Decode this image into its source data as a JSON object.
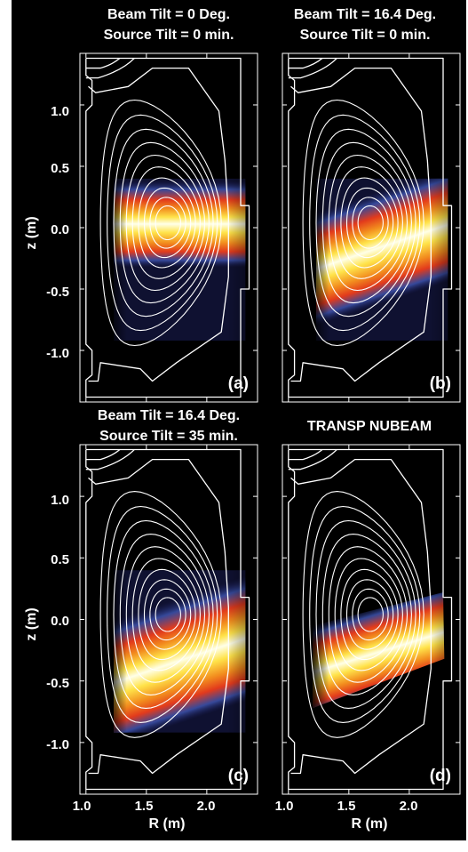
{
  "panels": [
    {
      "id": "a",
      "label": "(a)",
      "title_lines": [
        "Beam Tilt = 0 Deg.",
        "Source Tilt = 0 min."
      ],
      "beam_slope": 0.0,
      "beam_z0": 0.03,
      "beam_halfwidth": 0.16,
      "image_region": "measured"
    },
    {
      "id": "b",
      "label": "(b)",
      "title_lines": [
        "Beam Tilt = 16.4 Deg.",
        "Source Tilt = 0 min."
      ],
      "beam_slope": 0.33,
      "beam_z0": -0.18,
      "beam_halfwidth": 0.2,
      "image_region": "measured"
    },
    {
      "id": "c",
      "label": "(c)",
      "title_lines": [
        "Beam Tilt = 16.4 Deg.",
        "Source Tilt = 35 min."
      ],
      "beam_slope": 0.33,
      "beam_z0": -0.36,
      "beam_halfwidth": 0.22,
      "image_region": "measured"
    },
    {
      "id": "d",
      "label": "(d)",
      "title_lines": [
        "TRANSP NUBEAM"
      ],
      "beam_slope": 0.3,
      "beam_z0": -0.28,
      "beam_halfwidth": 0.17,
      "image_region": "simulated"
    }
  ],
  "axes": {
    "ylabel": "z (m)",
    "xlabel": "R (m)",
    "y_ticks": [
      "1.0",
      "0.5",
      "0.0",
      "-0.5",
      "-1.0"
    ],
    "x_ticks": [
      "1.0",
      "1.5",
      "2.0"
    ]
  },
  "colors": {
    "background": "#000000",
    "contours": "#ffffff",
    "colormap": [
      "#000000",
      "#1c1f5a",
      "#3a4fa6",
      "#cfd0e0",
      "#e23a1c",
      "#f28c1e",
      "#ffe34a",
      "#ffffe8"
    ]
  }
}
